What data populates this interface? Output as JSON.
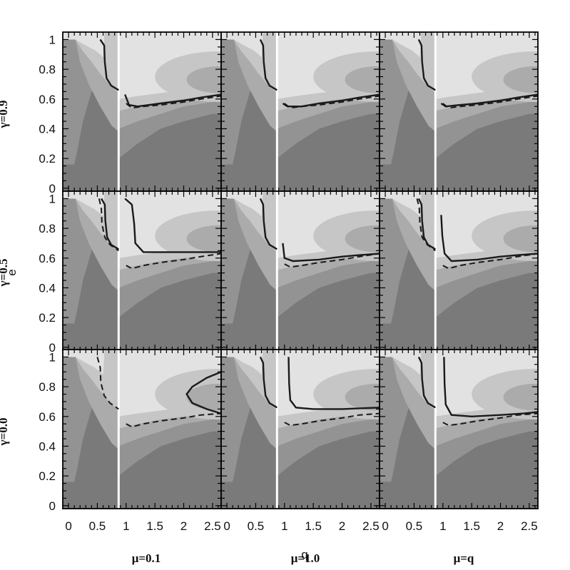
{
  "chart_data": {
    "type": "contour",
    "title": "",
    "xlabel": "q",
    "ylabel": "e",
    "xlim": [
      -0.1,
      2.65
    ],
    "ylim": [
      -0.02,
      1.05
    ],
    "x_ticks": [
      "0",
      "0.5",
      "1",
      "1.5",
      "2",
      "2.5"
    ],
    "y_ticks": [
      "0",
      "0.2",
      "0.4",
      "0.6",
      "0.8",
      "1"
    ],
    "row_labels": [
      "γ=0.9",
      "γ=0.5",
      "γ=0.0"
    ],
    "col_labels": [
      "μ=0.1",
      "μ=1.0",
      "μ=q"
    ],
    "colors": {
      "level0": "#7a7a7a",
      "level1": "#939393",
      "level2": "#ababab",
      "level3": "#c6c6c6",
      "level4": "#e2e2e2",
      "divider": "#ffffff",
      "frame": "#000000",
      "curve": "#1a1a1a"
    },
    "background_contours": {
      "left_region_x": [
        0,
        0.87
      ],
      "right_region_x": [
        0.87,
        2.65
      ],
      "left_boundaries": [
        {
          "name": "b1",
          "points": [
            [
              0.1,
              0.16
            ],
            [
              0.15,
              0.25
            ],
            [
              0.25,
              0.45
            ],
            [
              0.4,
              0.65
            ],
            [
              0.6,
              0.82
            ],
            [
              0.8,
              0.97
            ],
            [
              0.87,
              1.0
            ]
          ]
        },
        {
          "name": "b2",
          "points": [
            [
              0.12,
              1.0
            ],
            [
              0.2,
              0.85
            ],
            [
              0.35,
              0.7
            ],
            [
              0.55,
              0.55
            ],
            [
              0.75,
              0.42
            ],
            [
              0.87,
              0.38
            ]
          ]
        },
        {
          "name": "b3",
          "points": [
            [
              0.12,
              1.0
            ],
            [
              0.25,
              0.92
            ],
            [
              0.4,
              0.85
            ],
            [
              0.55,
              0.77
            ],
            [
              0.7,
              0.7
            ],
            [
              0.87,
              0.64
            ]
          ]
        },
        {
          "name": "b4",
          "points": [
            [
              0.12,
              1.0
            ],
            [
              0.3,
              0.96
            ],
            [
              0.45,
              0.93
            ],
            [
              0.55,
              0.9
            ],
            [
              0.6,
              0.88
            ],
            [
              0.62,
              1.0
            ]
          ]
        }
      ],
      "right_boundaries": [
        {
          "name": "r1",
          "points": [
            [
              0.87,
              0.2
            ],
            [
              1.2,
              0.3
            ],
            [
              1.6,
              0.4
            ],
            [
              2.0,
              0.45
            ],
            [
              2.5,
              0.5
            ]
          ]
        },
        {
          "name": "r2",
          "points": [
            [
              0.87,
              0.4
            ],
            [
              1.2,
              0.45
            ],
            [
              1.6,
              0.5
            ],
            [
              2.0,
              0.55
            ],
            [
              2.5,
              0.58
            ]
          ]
        },
        {
          "name": "r3",
          "points": [
            [
              0.87,
              0.52
            ],
            [
              1.2,
              0.55
            ],
            [
              1.6,
              0.58
            ],
            [
              2.0,
              0.6
            ],
            [
              2.5,
              0.62
            ]
          ]
        },
        {
          "name": "r4",
          "points": [
            [
              0.87,
              0.6
            ],
            [
              1.2,
              0.62
            ],
            [
              1.6,
              0.64
            ],
            [
              2.0,
              0.66
            ],
            [
              2.5,
              0.68
            ]
          ]
        }
      ],
      "ellipses": [
        {
          "name": "outer",
          "cx": 2.6,
          "cy": 0.75,
          "rx": 1.1,
          "ry": 0.17
        },
        {
          "name": "inner",
          "cx": 2.6,
          "cy": 0.73,
          "rx": 0.55,
          "ry": 0.09
        }
      ]
    },
    "panels": [
      {
        "row": 0,
        "col": 0,
        "dashed": [
          [
            1.0,
            0.57
          ],
          [
            1.1,
            0.54
          ],
          [
            1.3,
            0.55
          ],
          [
            1.6,
            0.56
          ],
          [
            2.0,
            0.58
          ],
          [
            2.3,
            0.6
          ],
          [
            2.65,
            0.62
          ]
        ],
        "solid": [
          [
            [
              0.55,
              1.0
            ],
            [
              0.62,
              0.96
            ],
            [
              0.63,
              0.85
            ],
            [
              0.66,
              0.74
            ],
            [
              0.74,
              0.69
            ],
            [
              0.87,
              0.66
            ]
          ],
          [
            [
              0.98,
              0.63
            ],
            [
              1.05,
              0.56
            ],
            [
              1.2,
              0.55
            ],
            [
              1.6,
              0.57
            ],
            [
              2.0,
              0.59
            ],
            [
              2.3,
              0.61
            ],
            [
              2.65,
              0.63
            ]
          ]
        ]
      },
      {
        "row": 0,
        "col": 1,
        "dashed": [
          [
            1.0,
            0.57
          ],
          [
            1.1,
            0.54
          ],
          [
            1.3,
            0.55
          ],
          [
            1.6,
            0.56
          ],
          [
            2.0,
            0.58
          ],
          [
            2.3,
            0.6
          ],
          [
            2.65,
            0.62
          ]
        ],
        "solid": [
          [
            [
              0.58,
              1.0
            ],
            [
              0.63,
              0.96
            ],
            [
              0.64,
              0.85
            ],
            [
              0.67,
              0.74
            ],
            [
              0.74,
              0.69
            ],
            [
              0.87,
              0.66
            ]
          ],
          [
            [
              0.97,
              0.57
            ],
            [
              1.05,
              0.55
            ],
            [
              1.3,
              0.55
            ],
            [
              1.6,
              0.57
            ],
            [
              2.0,
              0.59
            ],
            [
              2.3,
              0.61
            ],
            [
              2.65,
              0.63
            ]
          ]
        ]
      },
      {
        "row": 0,
        "col": 2,
        "dashed": [
          [
            1.0,
            0.57
          ],
          [
            1.1,
            0.54
          ],
          [
            1.3,
            0.55
          ],
          [
            1.6,
            0.56
          ],
          [
            2.0,
            0.58
          ],
          [
            2.3,
            0.6
          ],
          [
            2.65,
            0.62
          ]
        ],
        "solid": [
          [
            [
              0.58,
              1.0
            ],
            [
              0.63,
              0.96
            ],
            [
              0.64,
              0.85
            ],
            [
              0.67,
              0.74
            ],
            [
              0.74,
              0.69
            ],
            [
              0.87,
              0.66
            ]
          ],
          [
            [
              0.97,
              0.57
            ],
            [
              1.05,
              0.55
            ],
            [
              1.3,
              0.56
            ],
            [
              1.6,
              0.57
            ],
            [
              2.0,
              0.59
            ],
            [
              2.3,
              0.61
            ],
            [
              2.65,
              0.63
            ]
          ]
        ]
      },
      {
        "row": 1,
        "col": 0,
        "dashed": [
          [
            1.0,
            0.55
          ],
          [
            1.1,
            0.53
          ],
          [
            1.3,
            0.55
          ],
          [
            1.6,
            0.57
          ],
          [
            2.0,
            0.59
          ],
          [
            2.3,
            0.61
          ],
          [
            2.65,
            0.63
          ]
        ],
        "solid": [
          [
            [
              0.57,
              1.0
            ],
            [
              0.63,
              0.96
            ],
            [
              0.64,
              0.85
            ],
            [
              0.67,
              0.74
            ],
            [
              0.74,
              0.69
            ],
            [
              0.87,
              0.66
            ]
          ],
          [
            [
              0.98,
              1.0
            ],
            [
              1.1,
              0.96
            ],
            [
              1.14,
              0.83
            ],
            [
              1.16,
              0.7
            ],
            [
              1.3,
              0.64
            ],
            [
              1.6,
              0.64
            ],
            [
              2.0,
              0.64
            ],
            [
              2.65,
              0.64
            ]
          ]
        ],
        "extra_dashed": [
          [
            0.53,
            1.0
          ],
          [
            0.57,
            0.93
          ],
          [
            0.58,
            0.83
          ],
          [
            0.63,
            0.74
          ],
          [
            0.72,
            0.69
          ],
          [
            0.87,
            0.65
          ]
        ]
      },
      {
        "row": 1,
        "col": 1,
        "dashed": [
          [
            1.0,
            0.56
          ],
          [
            1.1,
            0.54
          ],
          [
            1.3,
            0.55
          ],
          [
            1.6,
            0.57
          ],
          [
            2.0,
            0.59
          ],
          [
            2.3,
            0.61
          ],
          [
            2.65,
            0.63
          ]
        ],
        "solid": [
          [
            [
              0.58,
              1.0
            ],
            [
              0.63,
              0.96
            ],
            [
              0.64,
              0.85
            ],
            [
              0.67,
              0.74
            ],
            [
              0.74,
              0.69
            ],
            [
              0.87,
              0.66
            ]
          ],
          [
            [
              0.97,
              0.7
            ],
            [
              1.0,
              0.6
            ],
            [
              1.15,
              0.58
            ],
            [
              1.6,
              0.59
            ],
            [
              2.0,
              0.61
            ],
            [
              2.3,
              0.62
            ],
            [
              2.65,
              0.63
            ]
          ]
        ]
      },
      {
        "row": 1,
        "col": 2,
        "dashed": [
          [
            1.0,
            0.55
          ],
          [
            1.1,
            0.53
          ],
          [
            1.3,
            0.55
          ],
          [
            1.6,
            0.57
          ],
          [
            2.0,
            0.59
          ],
          [
            2.3,
            0.61
          ],
          [
            2.65,
            0.63
          ]
        ],
        "solid": [
          [
            [
              0.58,
              1.0
            ],
            [
              0.63,
              0.96
            ],
            [
              0.64,
              0.85
            ],
            [
              0.67,
              0.74
            ],
            [
              0.74,
              0.69
            ],
            [
              0.87,
              0.66
            ]
          ],
          [
            [
              0.97,
              0.89
            ],
            [
              0.99,
              0.75
            ],
            [
              1.03,
              0.63
            ],
            [
              1.15,
              0.58
            ],
            [
              1.6,
              0.59
            ],
            [
              2.0,
              0.61
            ],
            [
              2.3,
              0.62
            ],
            [
              2.65,
              0.63
            ]
          ]
        ],
        "extra_dashed": [
          [
            0.55,
            1.0
          ],
          [
            0.59,
            0.94
          ],
          [
            0.6,
            0.84
          ],
          [
            0.64,
            0.74
          ],
          [
            0.73,
            0.69
          ],
          [
            0.87,
            0.65
          ]
        ]
      },
      {
        "row": 2,
        "col": 0,
        "dashed": [
          [
            1.0,
            0.55
          ],
          [
            1.1,
            0.53
          ],
          [
            1.3,
            0.55
          ],
          [
            1.6,
            0.57
          ],
          [
            2.0,
            0.59
          ],
          [
            2.3,
            0.61
          ],
          [
            2.65,
            0.62
          ]
        ],
        "solid": [
          [
            [
              2.65,
              0.9
            ],
            [
              2.4,
              0.86
            ],
            [
              2.15,
              0.8
            ],
            [
              2.05,
              0.75
            ],
            [
              2.15,
              0.69
            ],
            [
              2.4,
              0.65
            ],
            [
              2.65,
              0.62
            ]
          ]
        ],
        "extra_dashed": [
          [
            0.5,
            1.0
          ],
          [
            0.55,
            0.93
          ],
          [
            0.56,
            0.83
          ],
          [
            0.62,
            0.74
          ],
          [
            0.72,
            0.69
          ],
          [
            0.87,
            0.65
          ]
        ]
      },
      {
        "row": 2,
        "col": 1,
        "dashed": [
          [
            1.0,
            0.56
          ],
          [
            1.1,
            0.54
          ],
          [
            1.3,
            0.55
          ],
          [
            1.6,
            0.57
          ],
          [
            2.0,
            0.59
          ],
          [
            2.3,
            0.61
          ],
          [
            2.65,
            0.62
          ]
        ],
        "solid": [
          [
            [
              0.58,
              1.0
            ],
            [
              0.63,
              0.96
            ],
            [
              0.64,
              0.85
            ],
            [
              0.67,
              0.74
            ],
            [
              0.74,
              0.69
            ],
            [
              0.87,
              0.66
            ]
          ],
          [
            [
              1.07,
              1.0
            ],
            [
              1.08,
              0.82
            ],
            [
              1.1,
              0.71
            ],
            [
              1.2,
              0.66
            ],
            [
              1.5,
              0.65
            ],
            [
              2.0,
              0.65
            ],
            [
              2.65,
              0.66
            ]
          ]
        ]
      },
      {
        "row": 2,
        "col": 2,
        "dashed": [
          [
            1.0,
            0.56
          ],
          [
            1.1,
            0.54
          ],
          [
            1.3,
            0.55
          ],
          [
            1.6,
            0.57
          ],
          [
            2.0,
            0.59
          ],
          [
            2.3,
            0.61
          ],
          [
            2.65,
            0.62
          ]
        ],
        "solid": [
          [
            [
              0.58,
              1.0
            ],
            [
              0.63,
              0.96
            ],
            [
              0.64,
              0.85
            ],
            [
              0.67,
              0.74
            ],
            [
              0.74,
              0.69
            ],
            [
              0.87,
              0.66
            ]
          ],
          [
            [
              1.02,
              1.0
            ],
            [
              1.03,
              0.82
            ],
            [
              1.05,
              0.68
            ],
            [
              1.15,
              0.61
            ],
            [
              1.5,
              0.6
            ],
            [
              2.0,
              0.61
            ],
            [
              2.4,
              0.62
            ],
            [
              2.65,
              0.63
            ]
          ]
        ]
      }
    ]
  }
}
